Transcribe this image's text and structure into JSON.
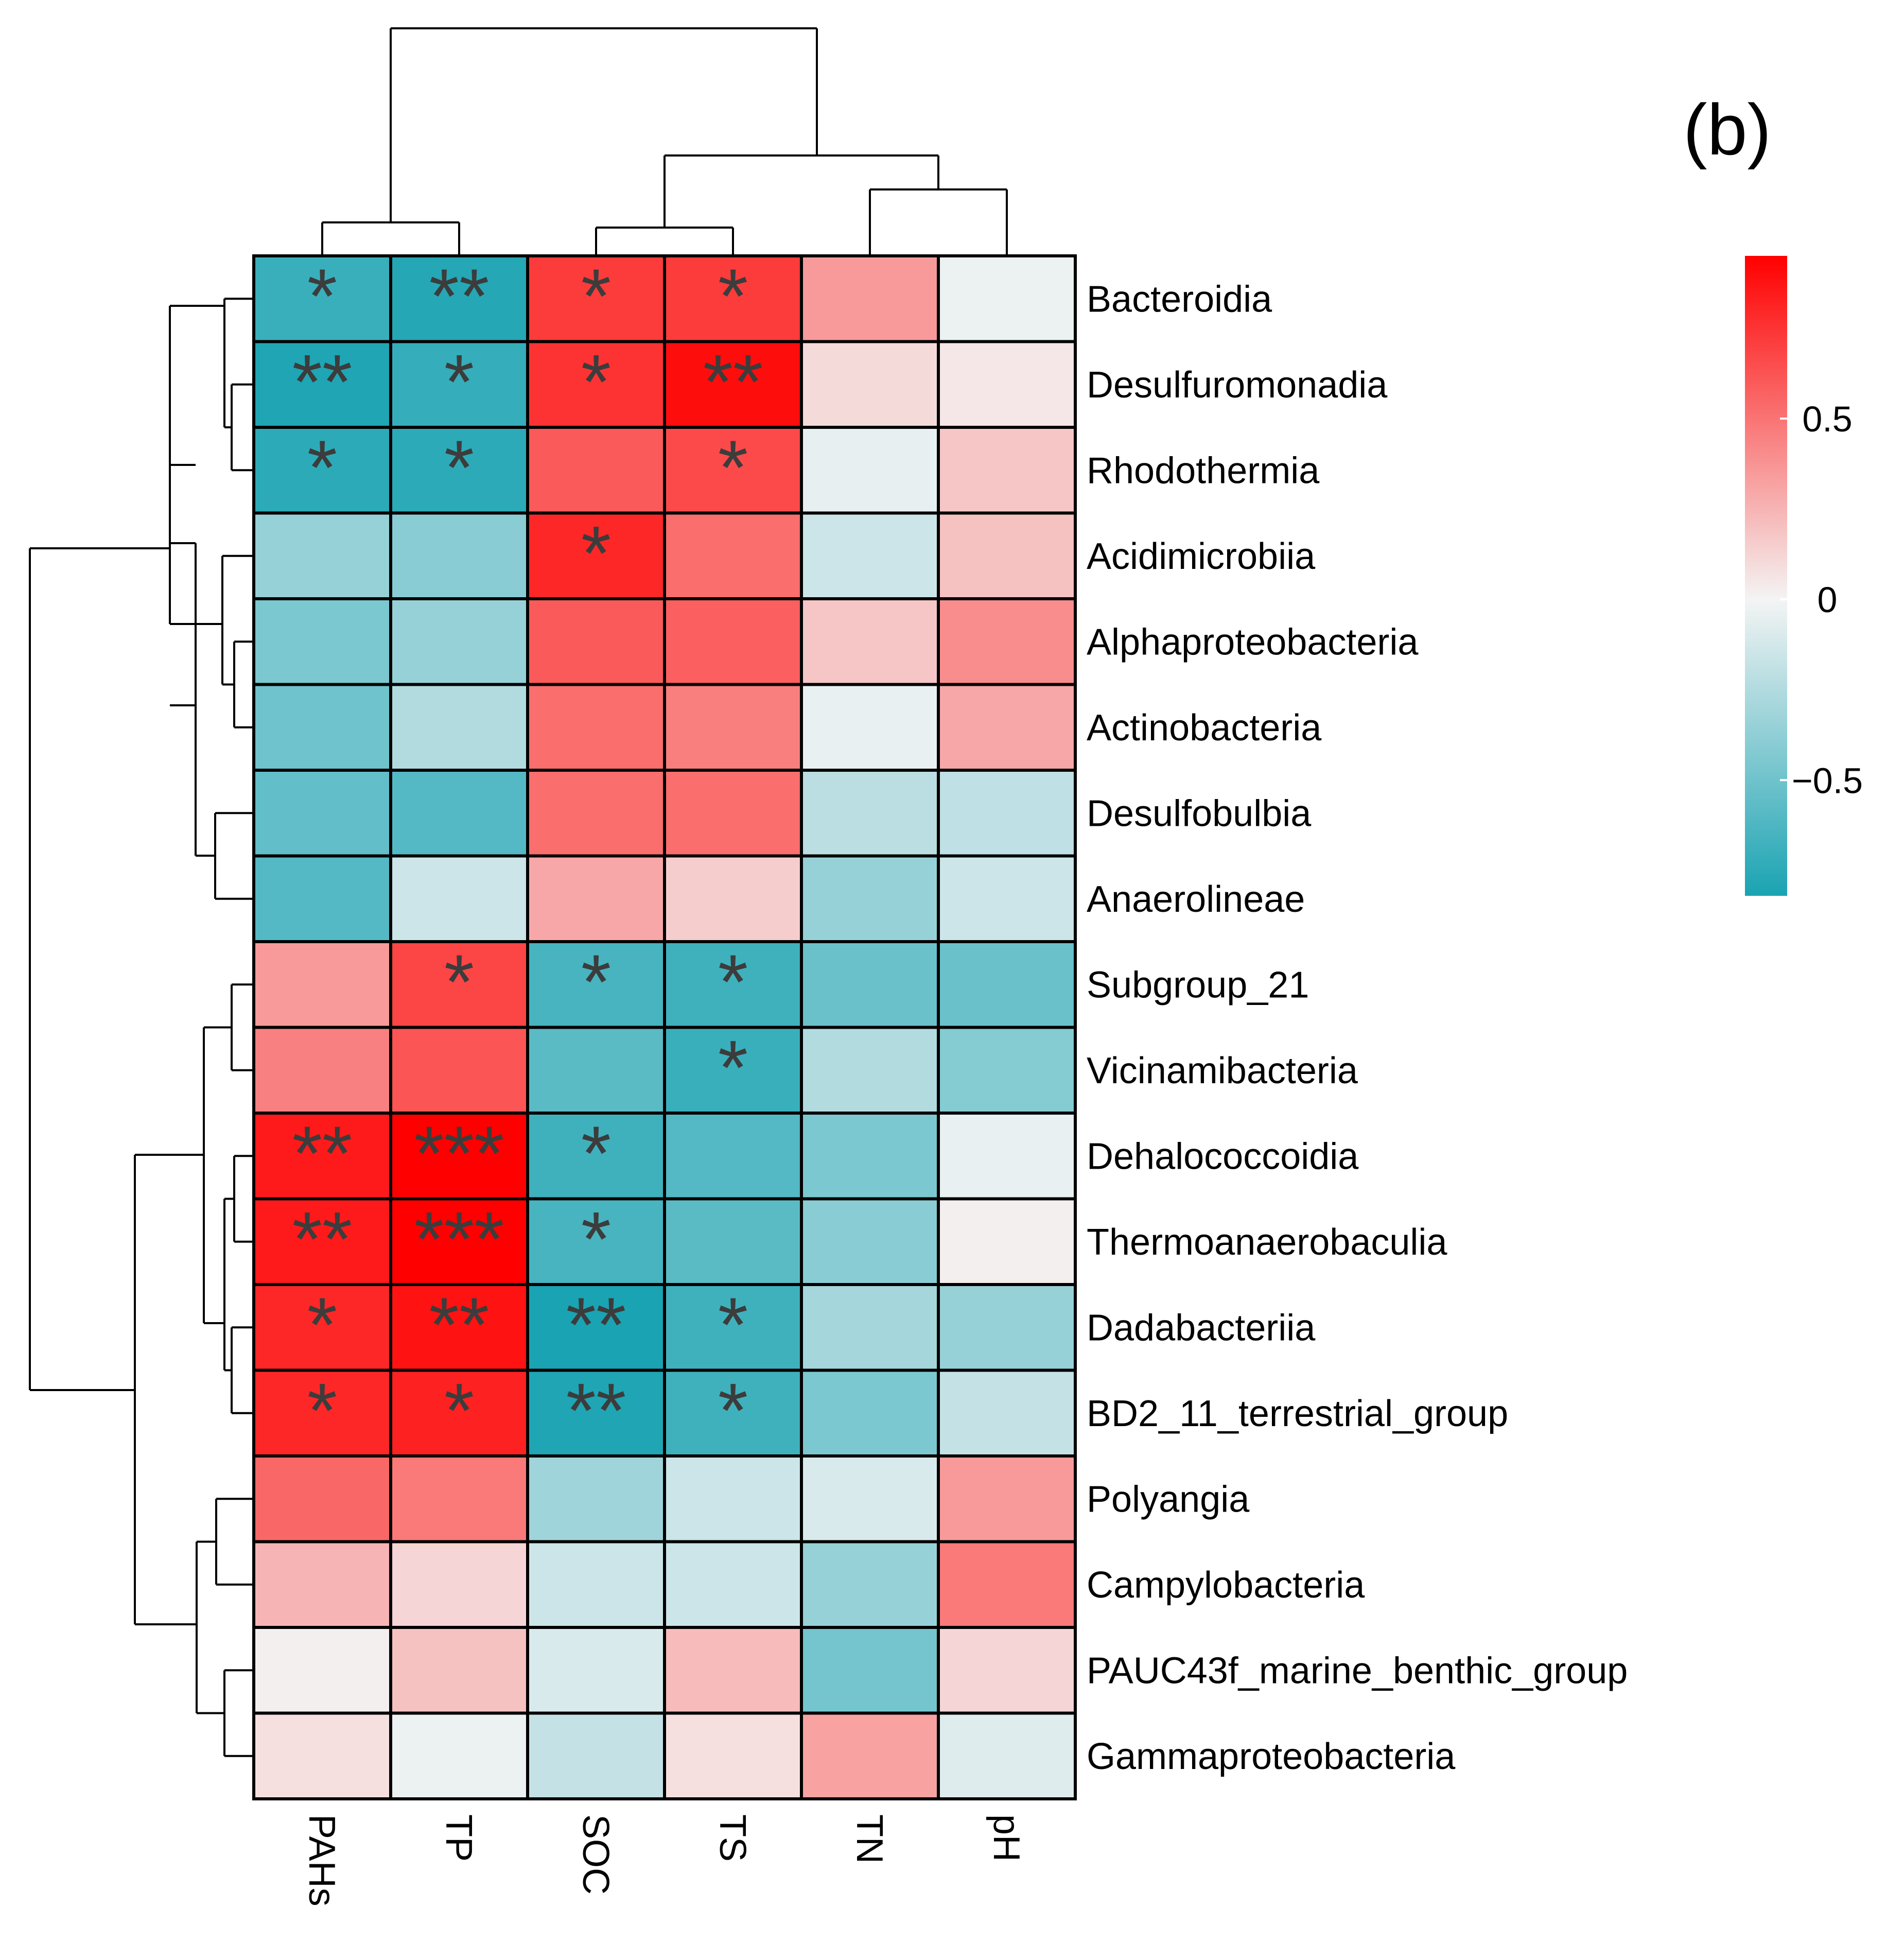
{
  "chart_data": {
    "type": "heatmap",
    "title": "",
    "panel_label": "(b)",
    "columns": [
      "PAHs",
      "TP",
      "SOC",
      "TS",
      "TN",
      "pH"
    ],
    "rows": [
      "Bacteroidia",
      "Desulfuromonadia",
      "Rhodothermia",
      "Acidimicrobiia",
      "Alphaproteobacteria",
      "Actinobacteria",
      "Desulfobulbia",
      "Anaerolineae",
      "Subgroup_21",
      "Vicinamibacteria",
      "Dehalococcoidia",
      "Thermoanaerobaculia",
      "Dadabacteriia",
      "BD2_11_terrestrial_group",
      "Polyangia",
      "Campylobacteria",
      "PAUC43f_marine_benthic_group",
      "Gammaproteobacteria"
    ],
    "values": [
      [
        -0.7,
        -0.78,
        0.72,
        0.72,
        0.35,
        -0.03
      ],
      [
        -0.8,
        -0.72,
        0.75,
        0.9,
        0.1,
        0.05
      ],
      [
        -0.75,
        -0.75,
        0.6,
        0.66,
        -0.05,
        0.18
      ],
      [
        -0.35,
        -0.4,
        0.8,
        0.52,
        -0.15,
        0.2
      ],
      [
        -0.45,
        -0.35,
        0.6,
        0.58,
        0.18,
        0.4
      ],
      [
        -0.5,
        -0.25,
        0.52,
        0.46,
        -0.04,
        0.3
      ],
      [
        -0.55,
        -0.6,
        0.52,
        0.52,
        -0.22,
        -0.2
      ],
      [
        -0.6,
        -0.15,
        0.3,
        0.15,
        -0.35,
        -0.15
      ],
      [
        0.35,
        0.68,
        -0.65,
        -0.68,
        -0.52,
        -0.52
      ],
      [
        0.45,
        0.62,
        -0.58,
        -0.7,
        -0.25,
        -0.42
      ],
      [
        0.85,
        0.95,
        -0.68,
        -0.6,
        -0.45,
        -0.04
      ],
      [
        0.85,
        0.95,
        -0.65,
        -0.58,
        -0.4,
        0.02
      ],
      [
        0.8,
        0.88,
        -0.82,
        -0.68,
        -0.3,
        -0.35
      ],
      [
        0.8,
        0.82,
        -0.8,
        -0.68,
        -0.45,
        -0.18
      ],
      [
        0.55,
        0.48,
        -0.32,
        -0.15,
        -0.1,
        0.35
      ],
      [
        0.25,
        0.12,
        -0.15,
        -0.15,
        -0.35,
        0.48
      ],
      [
        0.02,
        0.2,
        -0.1,
        0.22,
        -0.48,
        0.12
      ],
      [
        0.08,
        -0.03,
        -0.18,
        0.08,
        0.32,
        -0.08
      ]
    ],
    "significance": [
      [
        "*",
        "**",
        "*",
        "*",
        "",
        ""
      ],
      [
        "**",
        "*",
        "*",
        "**",
        "",
        ""
      ],
      [
        "*",
        "*",
        "",
        "*",
        "",
        ""
      ],
      [
        "",
        "",
        "*",
        "",
        "",
        ""
      ],
      [
        "",
        "",
        "",
        "",
        "",
        ""
      ],
      [
        "",
        "",
        "",
        "",
        "",
        ""
      ],
      [
        "",
        "",
        "",
        "",
        "",
        ""
      ],
      [
        "",
        "",
        "",
        "",
        "",
        ""
      ],
      [
        "",
        "*",
        "*",
        "*",
        "",
        ""
      ],
      [
        "",
        "",
        "",
        "*",
        "",
        ""
      ],
      [
        "**",
        "***",
        "*",
        "",
        "",
        ""
      ],
      [
        "**",
        "***",
        "*",
        "",
        "",
        ""
      ],
      [
        "*",
        "**",
        "**",
        "*",
        "",
        ""
      ],
      [
        "*",
        "*",
        "**",
        "*",
        "",
        ""
      ],
      [
        "",
        "",
        "",
        "",
        "",
        ""
      ],
      [
        "",
        "",
        "",
        "",
        "",
        ""
      ],
      [
        "",
        "",
        "",
        "",
        "",
        ""
      ],
      [
        "",
        "",
        "",
        "",
        "",
        ""
      ]
    ],
    "colorbar": {
      "min": -0.82,
      "max": 0.95,
      "ticks": [
        {
          "value": 0.5,
          "label": "0.5"
        },
        {
          "value": 0,
          "label": "0"
        },
        {
          "value": -0.5,
          "label": "−0.5"
        }
      ],
      "colors": {
        "low": "#1aa3b2",
        "mid": "#f4f4f4",
        "high": "#ff0000"
      }
    },
    "grid": false,
    "legend": "right"
  }
}
